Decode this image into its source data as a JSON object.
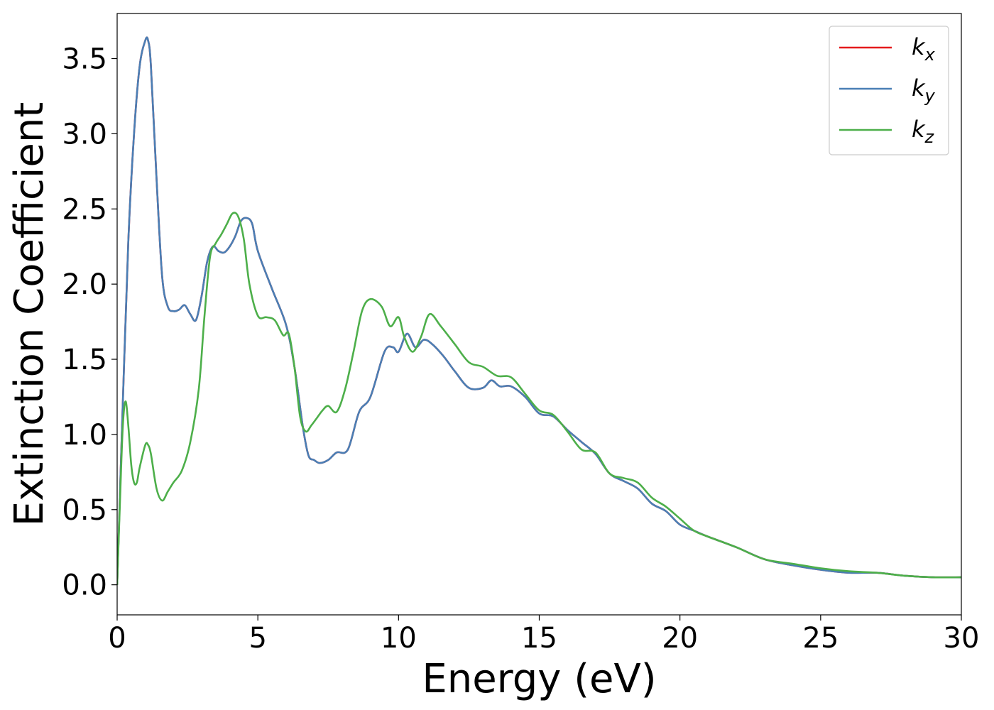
{
  "chart_data": {
    "type": "line",
    "title": "",
    "xlabel": "Energy (eV)",
    "ylabel": "Extinction Coefficient",
    "xlim": [
      0,
      30
    ],
    "ylim": [
      -0.2,
      3.8
    ],
    "xticks": [
      0,
      5,
      10,
      15,
      20,
      25,
      30
    ],
    "xtick_labels": [
      "0",
      "5",
      "10",
      "15",
      "20",
      "25",
      "30"
    ],
    "yticks": [
      0.0,
      0.5,
      1.0,
      1.5,
      2.0,
      2.5,
      3.0,
      3.5
    ],
    "ytick_labels": [
      "0.0",
      "0.5",
      "1.0",
      "1.5",
      "2.0",
      "2.5",
      "3.0",
      "3.5"
    ],
    "grid": false,
    "legend_position": "top-right",
    "series": [
      {
        "name": "k_x",
        "label_base": "k",
        "label_sub": "x",
        "color": "#e41a1c",
        "x": [
          0,
          0.2,
          0.4,
          0.6,
          0.8,
          1.0,
          1.1,
          1.2,
          1.4,
          1.6,
          1.8,
          2.0,
          2.2,
          2.4,
          2.6,
          2.8,
          3.0,
          3.2,
          3.4,
          3.6,
          3.8,
          4.0,
          4.2,
          4.4,
          4.6,
          4.8,
          5.0,
          5.5,
          6.0,
          6.3,
          6.6,
          6.8,
          7.0,
          7.2,
          7.5,
          7.8,
          8.2,
          8.6,
          9.0,
          9.5,
          9.8,
          10.0,
          10.3,
          10.6,
          10.9,
          11.2,
          11.6,
          12.0,
          12.5,
          13.0,
          13.3,
          13.6,
          14.0,
          14.5,
          15.0,
          15.5,
          16.0,
          16.5,
          17.0,
          17.5,
          18.0,
          18.5,
          19.0,
          19.5,
          20.0,
          20.5,
          21.0,
          22.0,
          23.0,
          24.0,
          25.0,
          26.0,
          27.0,
          28.0,
          29.0,
          30.0
        ],
        "y": [
          0.0,
          1.2,
          2.3,
          3.0,
          3.45,
          3.62,
          3.62,
          3.45,
          2.7,
          2.05,
          1.85,
          1.82,
          1.83,
          1.86,
          1.8,
          1.76,
          1.92,
          2.15,
          2.25,
          2.22,
          2.21,
          2.25,
          2.32,
          2.42,
          2.44,
          2.4,
          2.22,
          1.97,
          1.73,
          1.45,
          1.05,
          0.86,
          0.83,
          0.81,
          0.83,
          0.88,
          0.9,
          1.15,
          1.25,
          1.55,
          1.58,
          1.55,
          1.67,
          1.58,
          1.63,
          1.6,
          1.52,
          1.42,
          1.31,
          1.31,
          1.36,
          1.32,
          1.32,
          1.25,
          1.14,
          1.12,
          1.03,
          0.95,
          0.87,
          0.74,
          0.69,
          0.64,
          0.54,
          0.49,
          0.4,
          0.36,
          0.32,
          0.25,
          0.17,
          0.13,
          0.1,
          0.08,
          0.08,
          0.06,
          0.05,
          0.05
        ]
      },
      {
        "name": "k_y",
        "label_base": "k",
        "label_sub": "y",
        "color": "#4a7fb5",
        "x": [
          0,
          0.2,
          0.4,
          0.6,
          0.8,
          1.0,
          1.1,
          1.2,
          1.4,
          1.6,
          1.8,
          2.0,
          2.2,
          2.4,
          2.6,
          2.8,
          3.0,
          3.2,
          3.4,
          3.6,
          3.8,
          4.0,
          4.2,
          4.4,
          4.6,
          4.8,
          5.0,
          5.5,
          6.0,
          6.3,
          6.6,
          6.8,
          7.0,
          7.2,
          7.5,
          7.8,
          8.2,
          8.6,
          9.0,
          9.5,
          9.8,
          10.0,
          10.3,
          10.6,
          10.9,
          11.2,
          11.6,
          12.0,
          12.5,
          13.0,
          13.3,
          13.6,
          14.0,
          14.5,
          15.0,
          15.5,
          16.0,
          16.5,
          17.0,
          17.5,
          18.0,
          18.5,
          19.0,
          19.5,
          20.0,
          20.5,
          21.0,
          22.0,
          23.0,
          24.0,
          25.0,
          26.0,
          27.0,
          28.0,
          29.0,
          30.0
        ],
        "y": [
          0.0,
          1.2,
          2.3,
          3.0,
          3.45,
          3.62,
          3.62,
          3.45,
          2.7,
          2.05,
          1.85,
          1.82,
          1.83,
          1.86,
          1.8,
          1.76,
          1.92,
          2.15,
          2.25,
          2.22,
          2.21,
          2.25,
          2.32,
          2.42,
          2.44,
          2.4,
          2.22,
          1.97,
          1.73,
          1.45,
          1.05,
          0.86,
          0.83,
          0.81,
          0.83,
          0.88,
          0.9,
          1.15,
          1.25,
          1.55,
          1.58,
          1.55,
          1.67,
          1.58,
          1.63,
          1.6,
          1.52,
          1.42,
          1.31,
          1.31,
          1.36,
          1.32,
          1.32,
          1.25,
          1.14,
          1.12,
          1.03,
          0.95,
          0.87,
          0.74,
          0.69,
          0.64,
          0.54,
          0.49,
          0.4,
          0.36,
          0.32,
          0.25,
          0.17,
          0.13,
          0.1,
          0.08,
          0.08,
          0.06,
          0.05,
          0.05
        ]
      },
      {
        "name": "k_z",
        "label_base": "k",
        "label_sub": "z",
        "color": "#4daf4a",
        "x": [
          0,
          0.1,
          0.2,
          0.3,
          0.4,
          0.5,
          0.6,
          0.7,
          0.8,
          1.0,
          1.1,
          1.2,
          1.4,
          1.6,
          1.8,
          2.0,
          2.3,
          2.6,
          2.9,
          3.1,
          3.3,
          3.5,
          3.7,
          3.9,
          4.1,
          4.3,
          4.5,
          4.7,
          5.0,
          5.3,
          5.6,
          5.9,
          6.1,
          6.3,
          6.5,
          6.7,
          6.9,
          7.1,
          7.3,
          7.5,
          7.8,
          8.1,
          8.4,
          8.7,
          9.0,
          9.4,
          9.7,
          10.0,
          10.2,
          10.5,
          10.8,
          11.1,
          11.5,
          12.0,
          12.5,
          13.0,
          13.5,
          14.0,
          14.5,
          15.0,
          15.5,
          16.0,
          16.5,
          17.0,
          17.5,
          18.0,
          18.5,
          19.0,
          19.5,
          20.0,
          20.5,
          21.0,
          22.0,
          23.0,
          24.0,
          25.0,
          26.0,
          27.0,
          28.0,
          29.0,
          30.0
        ],
        "y": [
          0.0,
          0.55,
          1.05,
          1.22,
          1.05,
          0.8,
          0.68,
          0.68,
          0.78,
          0.93,
          0.93,
          0.87,
          0.64,
          0.56,
          0.62,
          0.68,
          0.76,
          0.95,
          1.3,
          1.78,
          2.18,
          2.27,
          2.33,
          2.4,
          2.47,
          2.45,
          2.3,
          2.0,
          1.79,
          1.78,
          1.76,
          1.66,
          1.67,
          1.45,
          1.12,
          1.02,
          1.06,
          1.11,
          1.16,
          1.19,
          1.15,
          1.3,
          1.55,
          1.82,
          1.9,
          1.85,
          1.72,
          1.78,
          1.65,
          1.55,
          1.65,
          1.8,
          1.72,
          1.6,
          1.48,
          1.45,
          1.39,
          1.38,
          1.27,
          1.16,
          1.13,
          1.02,
          0.9,
          0.88,
          0.74,
          0.71,
          0.68,
          0.58,
          0.52,
          0.44,
          0.36,
          0.32,
          0.25,
          0.17,
          0.14,
          0.11,
          0.09,
          0.08,
          0.06,
          0.05,
          0.05
        ]
      }
    ]
  }
}
